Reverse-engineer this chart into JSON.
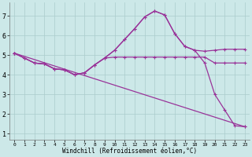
{
  "bg_color": "#cce8e8",
  "grid_color": "#aacccc",
  "line_color": "#993399",
  "xlabel": "Windchill (Refroidissement éolien,°C)",
  "xlim": [
    -0.5,
    23.5
  ],
  "ylim": [
    0.7,
    7.7
  ],
  "yticks": [
    1,
    2,
    3,
    4,
    5,
    6,
    7
  ],
  "xticks": [
    0,
    1,
    2,
    3,
    4,
    5,
    6,
    7,
    8,
    9,
    10,
    11,
    12,
    13,
    14,
    15,
    16,
    17,
    18,
    19,
    20,
    21,
    22,
    23
  ],
  "line1_x": [
    0,
    1,
    2,
    3,
    4,
    5,
    6,
    7,
    8,
    9,
    10,
    11,
    12,
    13,
    14,
    15,
    16,
    17,
    18,
    19,
    20,
    21,
    22,
    23
  ],
  "line1_y": [
    5.1,
    4.85,
    4.6,
    4.55,
    4.3,
    4.25,
    4.0,
    4.1,
    4.5,
    4.85,
    4.9,
    4.9,
    4.9,
    4.9,
    4.9,
    4.9,
    4.9,
    4.9,
    4.9,
    4.9,
    4.6,
    4.6,
    4.6,
    4.6
  ],
  "line2_x": [
    0,
    1,
    2,
    3,
    4,
    5,
    6,
    7,
    8,
    9,
    10,
    11,
    12,
    13,
    14,
    15,
    16,
    17,
    18,
    19,
    20,
    21,
    22,
    23
  ],
  "line2_y": [
    5.1,
    4.85,
    4.6,
    4.55,
    4.3,
    4.25,
    4.0,
    4.1,
    4.5,
    4.85,
    5.25,
    5.8,
    6.35,
    6.95,
    7.25,
    7.05,
    6.1,
    5.45,
    5.25,
    5.2,
    5.25,
    5.3,
    5.3,
    5.3
  ],
  "line3_x": [
    0,
    1,
    2,
    3,
    4,
    5,
    6,
    7,
    8,
    9,
    10,
    11,
    12,
    13,
    14,
    15,
    16,
    17,
    18,
    19,
    20,
    21,
    22,
    23
  ],
  "line3_y": [
    5.1,
    4.85,
    4.6,
    4.55,
    4.3,
    4.25,
    4.0,
    4.1,
    4.5,
    4.85,
    5.25,
    5.8,
    6.35,
    6.95,
    7.25,
    7.05,
    6.1,
    5.45,
    5.25,
    4.6,
    3.0,
    2.2,
    1.4,
    1.35
  ],
  "line4_x": [
    0,
    23
  ],
  "line4_y": [
    5.1,
    1.35
  ]
}
